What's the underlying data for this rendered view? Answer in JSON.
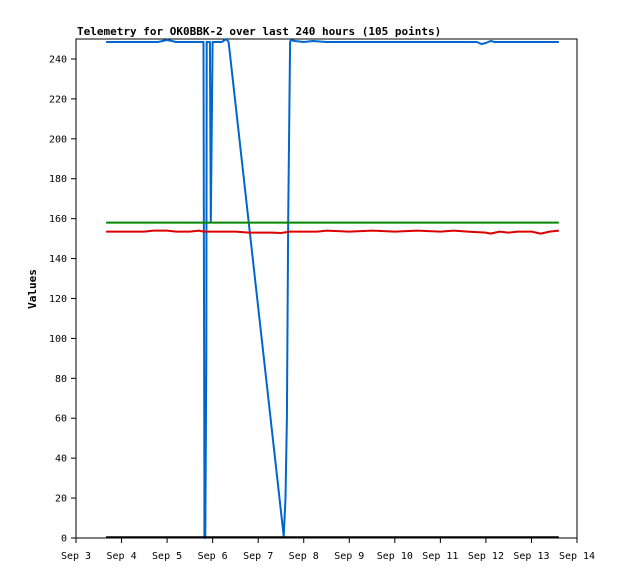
{
  "chart_data": {
    "type": "line",
    "title": "Telemetry for OK0BBK-2 over last 240 hours (105 points)",
    "xlabel": "",
    "ylabel": "Values",
    "x_unit": "days (September)",
    "xlim": [
      3,
      14
    ],
    "ylim": [
      0,
      250
    ],
    "x_ticks": [
      3,
      4,
      5,
      6,
      7,
      8,
      9,
      10,
      11,
      12,
      13,
      14
    ],
    "x_tick_labels": [
      "Sep 3",
      "Sep 4",
      "Sep 5",
      "Sep 6",
      "Sep 7",
      "Sep 8",
      "Sep 9",
      "Sep 10",
      "Sep 11",
      "Sep 12",
      "Sep 13",
      "Sep 14"
    ],
    "y_ticks": [
      0,
      20,
      40,
      60,
      80,
      100,
      120,
      140,
      160,
      180,
      200,
      220,
      240
    ],
    "y_tick_labels": [
      "0",
      "20",
      "40",
      "60",
      "80",
      "100",
      "120",
      "140",
      "160",
      "180",
      "200",
      "220",
      "240"
    ],
    "grid": false,
    "legend": "none",
    "series": [
      {
        "color": "#0066cc",
        "points": [
          [
            3.66,
            248.5
          ],
          [
            4.2,
            248.5
          ],
          [
            4.8,
            248.5
          ],
          [
            5.0,
            249.5
          ],
          [
            5.2,
            248.5
          ],
          [
            5.5,
            248.5
          ],
          [
            5.8,
            248.5
          ],
          [
            5.81,
            120
          ],
          [
            5.82,
            30
          ],
          [
            5.82,
            0
          ],
          [
            5.84,
            0
          ],
          [
            5.86,
            90
          ],
          [
            5.87,
            248.5
          ],
          [
            5.9,
            248.5
          ],
          [
            5.94,
            248.5
          ],
          [
            5.96,
            158
          ],
          [
            6.0,
            248.5
          ],
          [
            6.1,
            248.5
          ],
          [
            6.2,
            248.5
          ],
          [
            6.3,
            250
          ],
          [
            6.35,
            248.5
          ],
          [
            7.56,
            1
          ],
          [
            7.6,
            20
          ],
          [
            7.63,
            60
          ],
          [
            7.66,
            160
          ],
          [
            7.7,
            248.5
          ],
          [
            7.72,
            249.5
          ],
          [
            7.8,
            249
          ],
          [
            8.0,
            248.5
          ],
          [
            8.2,
            249
          ],
          [
            8.5,
            248.5
          ],
          [
            9.0,
            248.5
          ],
          [
            9.5,
            248.5
          ],
          [
            10.0,
            248.5
          ],
          [
            10.5,
            248.5
          ],
          [
            11.0,
            248.5
          ],
          [
            11.5,
            248.5
          ],
          [
            11.8,
            248.5
          ],
          [
            11.9,
            247.5
          ],
          [
            12.0,
            248
          ],
          [
            12.1,
            249
          ],
          [
            12.2,
            248.5
          ],
          [
            12.5,
            248.5
          ],
          [
            13.0,
            248.5
          ],
          [
            13.5,
            248.5
          ],
          [
            13.6,
            248.5
          ]
        ]
      },
      {
        "color": "#008800",
        "points": [
          [
            3.66,
            158
          ],
          [
            13.6,
            158
          ]
        ]
      },
      {
        "color": "#dd0000",
        "points": [
          [
            3.66,
            153.5
          ],
          [
            4.0,
            153.5
          ],
          [
            4.5,
            153.5
          ],
          [
            4.7,
            154
          ],
          [
            5.0,
            154
          ],
          [
            5.2,
            153.5
          ],
          [
            5.5,
            153.5
          ],
          [
            5.7,
            154
          ],
          [
            5.8,
            153.5
          ],
          [
            6.0,
            153.5
          ],
          [
            6.5,
            153.5
          ],
          [
            6.8,
            153
          ],
          [
            7.0,
            153
          ],
          [
            7.3,
            153
          ],
          [
            7.5,
            152.8
          ],
          [
            7.7,
            153.5
          ],
          [
            8.0,
            153.5
          ],
          [
            8.3,
            153.5
          ],
          [
            8.5,
            154
          ],
          [
            9.0,
            153.5
          ],
          [
            9.5,
            154
          ],
          [
            10.0,
            153.5
          ],
          [
            10.5,
            154
          ],
          [
            11.0,
            153.5
          ],
          [
            11.3,
            154
          ],
          [
            11.6,
            153.5
          ],
          [
            12.0,
            153
          ],
          [
            12.1,
            152.5
          ],
          [
            12.3,
            153.5
          ],
          [
            12.5,
            153
          ],
          [
            12.7,
            153.5
          ],
          [
            13.0,
            153.5
          ],
          [
            13.2,
            152.5
          ],
          [
            13.4,
            153.5
          ],
          [
            13.6,
            154
          ]
        ]
      },
      {
        "color": "#000000",
        "points": [
          [
            3.66,
            0.4
          ],
          [
            13.6,
            0.4
          ]
        ]
      }
    ]
  }
}
